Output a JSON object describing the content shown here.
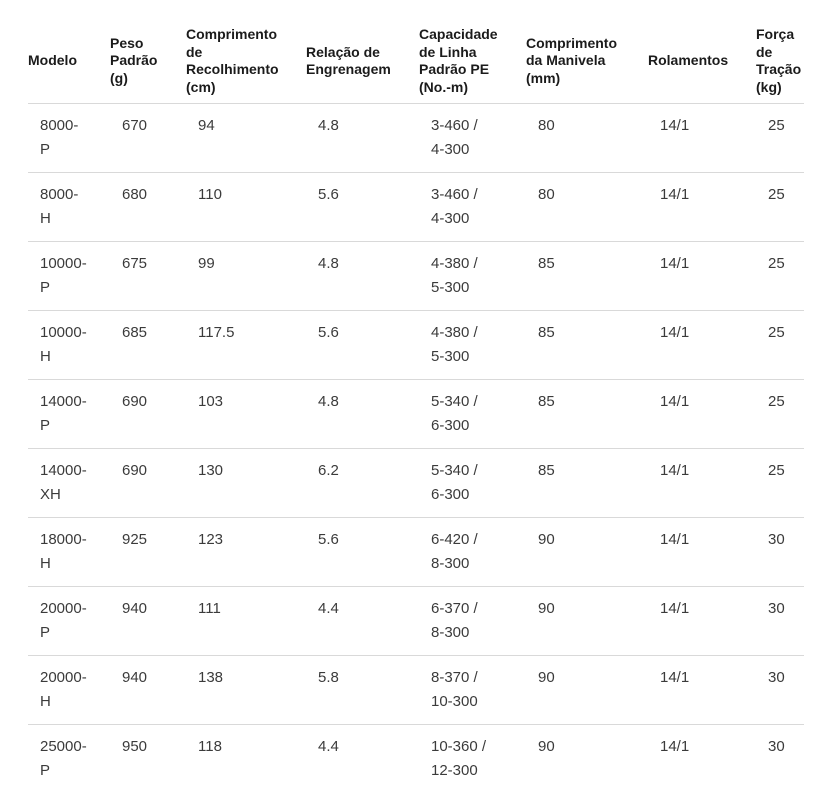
{
  "colors": {
    "background": "#ffffff",
    "header_text": "#1b1b1b",
    "body_text": "#3b3b3b",
    "divider": "#d9d9d9"
  },
  "table": {
    "columns": [
      {
        "key": "modelo",
        "label": "Modelo"
      },
      {
        "key": "peso_padrao_g",
        "label": "Peso\nPadrão\n(g)"
      },
      {
        "key": "comprimento_recolhimento_cm",
        "label": "Comprimento\nde\nRecolhimento\n(cm)"
      },
      {
        "key": "relacao_engrenagem",
        "label": "Relação de\nEngrenagem"
      },
      {
        "key": "capacidade_linha_pe",
        "label": "Capacidade\nde Linha\nPadrão PE\n(No.-m)"
      },
      {
        "key": "comprimento_manivela_mm",
        "label": "Comprimento\nda Manivela\n(mm)"
      },
      {
        "key": "rolamentos",
        "label": "Rolamentos"
      },
      {
        "key": "forca_tracao_kg",
        "label": "Força\nde\nTração\n(kg)"
      }
    ],
    "rows": [
      {
        "modelo": "8000-P",
        "peso_padrao_g": "670",
        "comprimento_recolhimento_cm": "94",
        "relacao_engrenagem": "4.8",
        "capacidade_linha_pe": "3-460 / 4-300",
        "comprimento_manivela_mm": "80",
        "rolamentos": "14/1",
        "forca_tracao_kg": "25"
      },
      {
        "modelo": "8000-H",
        "peso_padrao_g": "680",
        "comprimento_recolhimento_cm": "110",
        "relacao_engrenagem": "5.6",
        "capacidade_linha_pe": "3-460 / 4-300",
        "comprimento_manivela_mm": "80",
        "rolamentos": "14/1",
        "forca_tracao_kg": "25"
      },
      {
        "modelo": "10000-P",
        "peso_padrao_g": "675",
        "comprimento_recolhimento_cm": "99",
        "relacao_engrenagem": "4.8",
        "capacidade_linha_pe": "4-380 / 5-300",
        "comprimento_manivela_mm": "85",
        "rolamentos": "14/1",
        "forca_tracao_kg": "25"
      },
      {
        "modelo": "10000-H",
        "peso_padrao_g": "685",
        "comprimento_recolhimento_cm": "117.5",
        "relacao_engrenagem": "5.6",
        "capacidade_linha_pe": "4-380 / 5-300",
        "comprimento_manivela_mm": "85",
        "rolamentos": "14/1",
        "forca_tracao_kg": "25"
      },
      {
        "modelo": "14000-P",
        "peso_padrao_g": "690",
        "comprimento_recolhimento_cm": "103",
        "relacao_engrenagem": "4.8",
        "capacidade_linha_pe": "5-340 / 6-300",
        "comprimento_manivela_mm": "85",
        "rolamentos": "14/1",
        "forca_tracao_kg": "25"
      },
      {
        "modelo": "14000-XH",
        "peso_padrao_g": "690",
        "comprimento_recolhimento_cm": "130",
        "relacao_engrenagem": "6.2",
        "capacidade_linha_pe": "5-340 / 6-300",
        "comprimento_manivela_mm": "85",
        "rolamentos": "14/1",
        "forca_tracao_kg": "25"
      },
      {
        "modelo": "18000-H",
        "peso_padrao_g": "925",
        "comprimento_recolhimento_cm": "123",
        "relacao_engrenagem": "5.6",
        "capacidade_linha_pe": "6-420 / 8-300",
        "comprimento_manivela_mm": "90",
        "rolamentos": "14/1",
        "forca_tracao_kg": "30"
      },
      {
        "modelo": "20000-P",
        "peso_padrao_g": "940",
        "comprimento_recolhimento_cm": "111",
        "relacao_engrenagem": "4.4",
        "capacidade_linha_pe": "6-370 / 8-300",
        "comprimento_manivela_mm": "90",
        "rolamentos": "14/1",
        "forca_tracao_kg": "30"
      },
      {
        "modelo": "20000-H",
        "peso_padrao_g": "940",
        "comprimento_recolhimento_cm": "138",
        "relacao_engrenagem": "5.8",
        "capacidade_linha_pe": "8-370 / 10-300",
        "comprimento_manivela_mm": "90",
        "rolamentos": "14/1",
        "forca_tracao_kg": "30"
      },
      {
        "modelo": "25000-P",
        "peso_padrao_g": "950",
        "comprimento_recolhimento_cm": "118",
        "relacao_engrenagem": "4.4",
        "capacidade_linha_pe": "10-360 / 12-300",
        "comprimento_manivela_mm": "90",
        "rolamentos": "14/1",
        "forca_tracao_kg": "30"
      }
    ]
  }
}
